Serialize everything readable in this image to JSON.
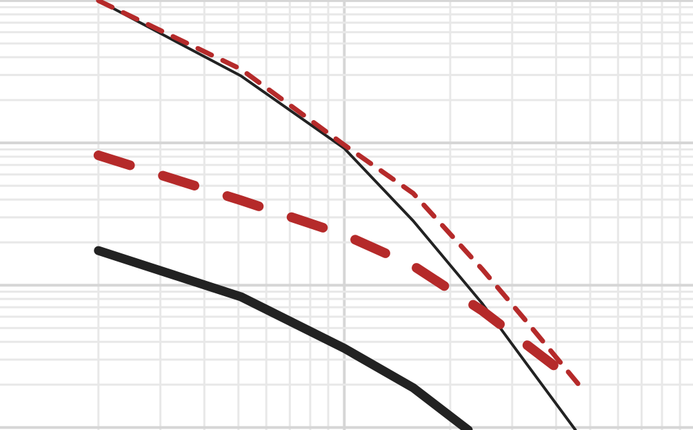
{
  "chart_data": {
    "type": "line",
    "xscale": "log",
    "yscale": "log",
    "grid": true,
    "xlim": [
      1.05,
      98
    ],
    "ylim": [
      0.096,
      101
    ],
    "xticks": [
      2,
      3,
      4,
      5,
      6,
      7,
      8,
      9,
      10,
      20,
      30,
      40,
      50,
      60,
      70,
      80,
      90
    ],
    "yticks": [
      0.1,
      0.2,
      0.3,
      0.4,
      0.5,
      0.6,
      0.7,
      0.8,
      0.9,
      1,
      2,
      3,
      4,
      5,
      6,
      7,
      8,
      9,
      10,
      20,
      30,
      40,
      50,
      60,
      70,
      80,
      90,
      100
    ],
    "series": [
      {
        "color": "#222222",
        "width": 4,
        "dash": "none",
        "x": [
          2,
          5.08,
          10,
          15.7,
          24.7,
          32.3,
          45.4
        ],
        "values": [
          100,
          29.6,
          9.15,
          2.83,
          0.74,
          0.3,
          0.096
        ]
      },
      {
        "color": "#b52a2a",
        "width": 7,
        "dash": "22 18",
        "x": [
          2,
          5.08,
          10,
          15.7,
          24.7,
          32.3,
          46.4
        ],
        "values": [
          100,
          33,
          9.67,
          4.42,
          1.29,
          0.59,
          0.2
        ]
      },
      {
        "color": "#b52a2a",
        "width": 14,
        "dash": "48 50",
        "x": [
          2,
          5.08,
          10,
          15.7,
          24.7,
          46.4
        ],
        "values": [
          8.18,
          3.95,
          2.26,
          1.37,
          0.66,
          0.2
        ]
      },
      {
        "color": "#222222",
        "width": 13,
        "dash": "none",
        "x": [
          2,
          5.08,
          10,
          15.7,
          22.5
        ],
        "values": [
          1.75,
          0.83,
          0.36,
          0.19,
          0.096
        ]
      }
    ]
  }
}
